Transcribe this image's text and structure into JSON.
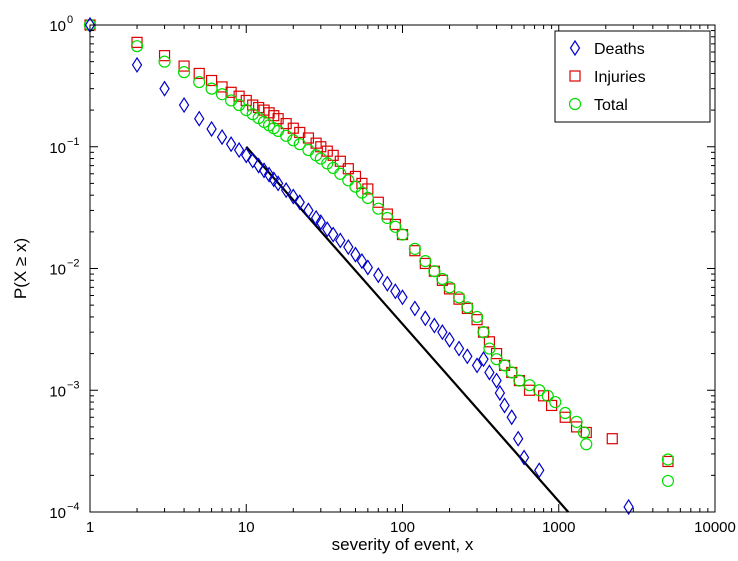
{
  "chart_data": {
    "type": "scatter",
    "xlabel": "severity of event, x",
    "ylabel": "P(X ≥ x)",
    "xscale": "log",
    "yscale": "log",
    "xlim": [
      1,
      10000
    ],
    "ylim": [
      0.0001,
      1
    ],
    "x_ticks": [
      {
        "value": 1,
        "label": "1"
      },
      {
        "value": 10,
        "label": "10"
      },
      {
        "value": 100,
        "label": "100"
      },
      {
        "value": 1000,
        "label": "1000"
      },
      {
        "value": 10000,
        "label": "10000"
      }
    ],
    "y_ticks": [
      {
        "value": 0.0001,
        "base": "10",
        "exp": "−4"
      },
      {
        "value": 0.001,
        "base": "10",
        "exp": "−3"
      },
      {
        "value": 0.01,
        "base": "10",
        "exp": "−2"
      },
      {
        "value": 0.1,
        "base": "10",
        "exp": "−1"
      },
      {
        "value": 1,
        "base": "10",
        "exp": "0"
      }
    ],
    "grid": false,
    "legend_position": "top-right",
    "series": [
      {
        "name": "Deaths",
        "marker": "diamond",
        "color": "#0000cc",
        "points": [
          [
            1,
            1.0
          ],
          [
            2,
            0.47
          ],
          [
            3,
            0.3
          ],
          [
            4,
            0.22
          ],
          [
            5,
            0.17
          ],
          [
            6,
            0.14
          ],
          [
            7,
            0.12
          ],
          [
            8,
            0.105
          ],
          [
            9,
            0.094
          ],
          [
            10,
            0.085
          ],
          [
            11,
            0.077
          ],
          [
            12,
            0.07
          ],
          [
            13,
            0.064
          ],
          [
            14,
            0.059
          ],
          [
            15,
            0.054
          ],
          [
            16,
            0.05
          ],
          [
            18,
            0.044
          ],
          [
            20,
            0.039
          ],
          [
            22,
            0.035
          ],
          [
            25,
            0.03
          ],
          [
            28,
            0.026
          ],
          [
            30,
            0.024
          ],
          [
            33,
            0.021
          ],
          [
            36,
            0.019
          ],
          [
            40,
            0.017
          ],
          [
            45,
            0.015
          ],
          [
            50,
            0.013
          ],
          [
            55,
            0.0115
          ],
          [
            60,
            0.0102
          ],
          [
            70,
            0.0088
          ],
          [
            80,
            0.0075
          ],
          [
            90,
            0.0065
          ],
          [
            100,
            0.0058
          ],
          [
            120,
            0.0047
          ],
          [
            140,
            0.0039
          ],
          [
            160,
            0.0034
          ],
          [
            180,
            0.003
          ],
          [
            200,
            0.0026
          ],
          [
            230,
            0.0022
          ],
          [
            260,
            0.0019
          ],
          [
            300,
            0.0016
          ],
          [
            330,
            0.0018
          ],
          [
            360,
            0.0014
          ],
          [
            400,
            0.0012
          ],
          [
            420,
            0.00095
          ],
          [
            450,
            0.00075
          ],
          [
            500,
            0.0006
          ],
          [
            550,
            0.0004
          ],
          [
            600,
            0.00028
          ],
          [
            750,
            0.00022
          ],
          [
            2800,
            0.00011
          ]
        ]
      },
      {
        "name": "Injuries",
        "marker": "square",
        "color": "#dd0000",
        "points": [
          [
            1,
            1.0
          ],
          [
            2,
            0.72
          ],
          [
            3,
            0.56
          ],
          [
            4,
            0.46
          ],
          [
            5,
            0.4
          ],
          [
            6,
            0.35
          ],
          [
            7,
            0.31
          ],
          [
            8,
            0.28
          ],
          [
            9,
            0.26
          ],
          [
            10,
            0.24
          ],
          [
            11,
            0.22
          ],
          [
            12,
            0.21
          ],
          [
            13,
            0.2
          ],
          [
            14,
            0.19
          ],
          [
            15,
            0.18
          ],
          [
            16,
            0.17
          ],
          [
            18,
            0.155
          ],
          [
            20,
            0.142
          ],
          [
            22,
            0.131
          ],
          [
            25,
            0.118
          ],
          [
            28,
            0.107
          ],
          [
            30,
            0.1
          ],
          [
            33,
            0.092
          ],
          [
            36,
            0.085
          ],
          [
            40,
            0.076
          ],
          [
            45,
            0.066
          ],
          [
            50,
            0.057
          ],
          [
            55,
            0.05
          ],
          [
            60,
            0.045
          ],
          [
            70,
            0.035
          ],
          [
            80,
            0.028
          ],
          [
            90,
            0.023
          ],
          [
            100,
            0.019
          ],
          [
            120,
            0.014
          ],
          [
            140,
            0.011
          ],
          [
            160,
            0.0095
          ],
          [
            180,
            0.008
          ],
          [
            200,
            0.0068
          ],
          [
            230,
            0.0056
          ],
          [
            260,
            0.0047
          ],
          [
            300,
            0.0038
          ],
          [
            330,
            0.003
          ],
          [
            360,
            0.0025
          ],
          [
            400,
            0.002
          ],
          [
            450,
            0.0016
          ],
          [
            500,
            0.0014
          ],
          [
            560,
            0.0012
          ],
          [
            650,
            0.001
          ],
          [
            800,
            0.0009
          ],
          [
            900,
            0.00075
          ],
          [
            1100,
            0.0006
          ],
          [
            1300,
            0.0005
          ],
          [
            1500,
            0.00045
          ],
          [
            2200,
            0.0004
          ],
          [
            5000,
            0.00026
          ]
        ]
      },
      {
        "name": "Total",
        "marker": "circle",
        "color": "#00dd00",
        "points": [
          [
            1,
            1.0
          ],
          [
            2,
            0.67
          ],
          [
            3,
            0.5
          ],
          [
            4,
            0.41
          ],
          [
            5,
            0.34
          ],
          [
            6,
            0.3
          ],
          [
            7,
            0.27
          ],
          [
            8,
            0.24
          ],
          [
            9,
            0.22
          ],
          [
            10,
            0.2
          ],
          [
            11,
            0.185
          ],
          [
            12,
            0.172
          ],
          [
            13,
            0.16
          ],
          [
            14,
            0.15
          ],
          [
            15,
            0.142
          ],
          [
            16,
            0.135
          ],
          [
            18,
            0.123
          ],
          [
            20,
            0.113
          ],
          [
            22,
            0.105
          ],
          [
            25,
            0.094
          ],
          [
            28,
            0.085
          ],
          [
            30,
            0.08
          ],
          [
            33,
            0.073
          ],
          [
            36,
            0.067
          ],
          [
            40,
            0.06
          ],
          [
            45,
            0.053
          ],
          [
            50,
            0.047
          ],
          [
            55,
            0.042
          ],
          [
            60,
            0.038
          ],
          [
            70,
            0.031
          ],
          [
            80,
            0.026
          ],
          [
            90,
            0.022
          ],
          [
            100,
            0.019
          ],
          [
            120,
            0.0145
          ],
          [
            140,
            0.0115
          ],
          [
            160,
            0.0095
          ],
          [
            180,
            0.0082
          ],
          [
            200,
            0.007
          ],
          [
            230,
            0.0058
          ],
          [
            260,
            0.0048
          ],
          [
            300,
            0.004
          ],
          [
            330,
            0.003
          ],
          [
            360,
            0.0022
          ],
          [
            400,
            0.0018
          ],
          [
            450,
            0.0016
          ],
          [
            500,
            0.0014
          ],
          [
            560,
            0.0012
          ],
          [
            650,
            0.0011
          ],
          [
            750,
            0.001
          ],
          [
            850,
            0.0009
          ],
          [
            950,
            0.0008
          ],
          [
            1100,
            0.00065
          ],
          [
            1300,
            0.00055
          ],
          [
            1450,
            0.00045
          ],
          [
            1500,
            0.00036
          ],
          [
            5000,
            0.00027
          ],
          [
            5000,
            0.00018
          ]
        ]
      }
    ],
    "fit_line": {
      "color": "#000000",
      "points": [
        [
          10,
          0.1
        ],
        [
          1150,
          0.0001
        ]
      ]
    }
  }
}
